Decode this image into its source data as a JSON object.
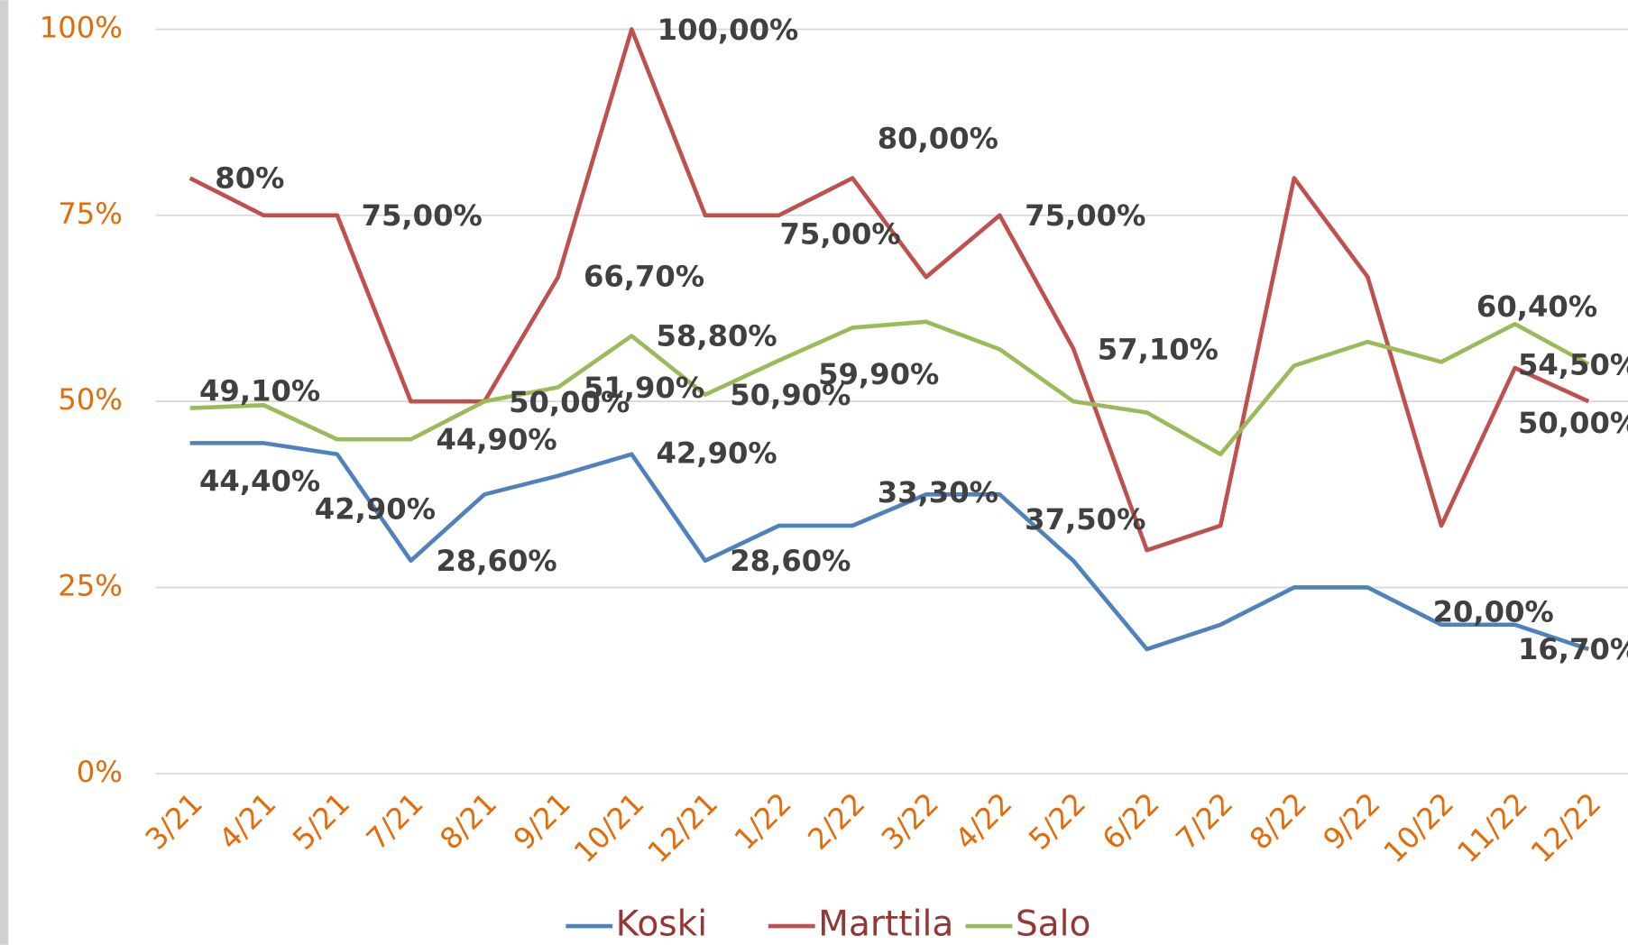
{
  "chart_data": {
    "type": "line",
    "categories": [
      "3/21",
      "4/21",
      "5/21",
      "7/21",
      "8/21",
      "9/21",
      "10/21",
      "12/21",
      "1/22",
      "2/22",
      "3/22",
      "4/22",
      "5/22",
      "6/22",
      "7/22",
      "8/22",
      "9/22",
      "10/22",
      "11/22",
      "12/22"
    ],
    "series": [
      {
        "name": "Koski",
        "color": "#4f81bd",
        "values": [
          44.4,
          44.4,
          42.9,
          28.6,
          37.5,
          40,
          42.9,
          28.6,
          33.3,
          33.3,
          37.5,
          37.5,
          28.6,
          16.7,
          20,
          25,
          25,
          20,
          20,
          16.7
        ],
        "value_labels": [
          "44,40%",
          null,
          "42,90%",
          "28,60%",
          null,
          null,
          "42,90%",
          "28,60%",
          null,
          "33,30%",
          null,
          "37,50%",
          null,
          null,
          null,
          null,
          null,
          null,
          "20,00%",
          "16,70%"
        ]
      },
      {
        "name": "Marttila",
        "color": "#c0504d",
        "values": [
          80,
          75,
          75,
          50,
          50,
          66.7,
          100,
          75,
          75,
          80,
          66.7,
          75,
          57.1,
          30,
          33.3,
          80,
          66.7,
          33.3,
          54.5,
          50
        ],
        "value_labels": [
          "80%",
          null,
          "75,00%",
          null,
          "50,00%",
          "66,70%",
          "100,00%",
          null,
          "75,00%",
          "80,00%",
          null,
          "75,00%",
          "57,10%",
          null,
          null,
          null,
          null,
          null,
          "54,50%",
          "50,00%"
        ]
      },
      {
        "name": "Salo",
        "color": "#9bbb59",
        "values": [
          49.1,
          49.5,
          44.9,
          44.9,
          50,
          51.9,
          58.8,
          50.9,
          55.5,
          59.9,
          60.7,
          57,
          50,
          48.5,
          42.9,
          54.8,
          58,
          55.3,
          60.4,
          55
        ],
        "value_labels": [
          "49,10%",
          null,
          null,
          "44,90%",
          null,
          "51,90%",
          "58,80%",
          "50,90%",
          null,
          "59,90%",
          null,
          null,
          null,
          null,
          null,
          null,
          null,
          null,
          "60,40%",
          null
        ]
      }
    ],
    "ylim": [
      0,
      100
    ],
    "yticks": [
      {
        "value": 0,
        "label": "0%"
      },
      {
        "value": 25,
        "label": "25%"
      },
      {
        "value": 50,
        "label": "50%"
      },
      {
        "value": 75,
        "label": "75%"
      },
      {
        "value": 100,
        "label": "100%"
      }
    ],
    "grid": true,
    "legend": "bottom"
  }
}
